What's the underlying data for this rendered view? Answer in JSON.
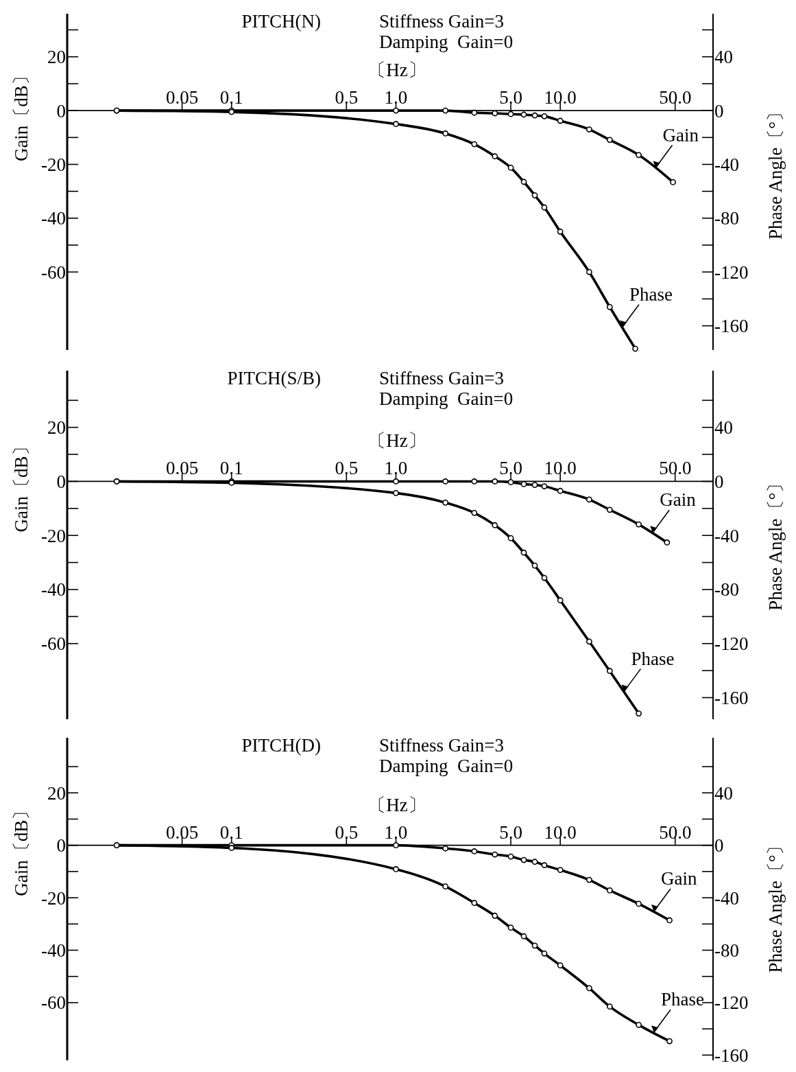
{
  "chart_data": [
    {
      "type": "line",
      "legend": "right",
      "title": "PITCH(N)",
      "subtitle": "Stiffness Gain=3\nDamping  Gain=0",
      "xlabel": "〔Hz〕",
      "ylabel": "Gain〔dB〕",
      "y2label": "Phase Angle〔°〕",
      "log": "x",
      "marker": "circle",
      "xlim": [
        0.01,
        85
      ],
      "ylim": [
        -89,
        36
      ],
      "y2lim": [
        -178,
        72
      ],
      "xticks": [
        0.05,
        0.1,
        0.5,
        {
          "value": 1,
          "label": "1.0"
        },
        {
          "value": 5,
          "label": "5.0"
        },
        {
          "value": 10,
          "label": "10.0"
        },
        {
          "value": 50,
          "label": "50.0"
        }
      ],
      "yticks": [
        {
          "value": 30,
          "label": null
        },
        20,
        {
          "value": 10,
          "label": null
        },
        0,
        {
          "value": -10,
          "label": null
        },
        -20,
        {
          "value": -30,
          "label": null
        },
        -40,
        {
          "value": -50,
          "label": null
        },
        -60
      ],
      "y2ticks": [
        {
          "value": 60,
          "label": null
        },
        40,
        {
          "value": 20,
          "label": null
        },
        0,
        {
          "value": -20,
          "label": null
        },
        -40,
        {
          "value": -60,
          "label": null
        },
        -80,
        {
          "value": -100,
          "label": null
        },
        -120,
        {
          "value": -140,
          "label": null
        },
        -160
      ],
      "series": [
        {
          "name": "Gain",
          "color": "#000000",
          "x": [
            0.02,
            0.1,
            1,
            2,
            3,
            4,
            5,
            6,
            7,
            8,
            10,
            15,
            20,
            30,
            48.5
          ],
          "values": [
            0,
            0,
            0,
            0,
            -0.8,
            -1,
            -1.3,
            -1.5,
            -1.8,
            -2.1,
            -3.8,
            -7,
            -10.9,
            -16.5,
            -26.6
          ]
        },
        {
          "name": "Phase",
          "axis": "y2",
          "color": "#000000",
          "x": [
            0.02,
            0.1,
            1,
            2,
            3,
            4,
            5,
            6,
            7,
            8,
            10,
            15,
            20,
            28.6
          ],
          "values": [
            0,
            -1,
            -10,
            -17,
            -25,
            -34,
            -42.5,
            -53,
            -63,
            -72,
            -90,
            -120,
            -146,
            -177
          ]
        }
      ]
    },
    {
      "type": "line",
      "legend": "right",
      "title": "PITCH(S/B)",
      "subtitle": "Stiffness Gain=3\nDamping  Gain=0",
      "xlabel": "〔Hz〕",
      "ylabel": "Gain〔dB〕",
      "y2label": "Phase Angle〔°〕",
      "log": "x",
      "marker": "circle",
      "xlim": [
        0.01,
        85
      ],
      "ylim": [
        -88,
        41
      ],
      "y2lim": [
        -176,
        82
      ],
      "xticks": [
        0.05,
        0.1,
        0.5,
        {
          "value": 1,
          "label": "1.0"
        },
        {
          "value": 5,
          "label": "5.0"
        },
        {
          "value": 10,
          "label": "10.0"
        },
        {
          "value": 50,
          "label": "50.0"
        }
      ],
      "yticks": [
        {
          "value": 30,
          "label": null
        },
        20,
        {
          "value": 10,
          "label": null
        },
        0,
        {
          "value": -10,
          "label": null
        },
        -20,
        {
          "value": -30,
          "label": null
        },
        -40,
        {
          "value": -50,
          "label": null
        },
        -60
      ],
      "y2ticks": [
        {
          "value": 60,
          "label": null
        },
        40,
        {
          "value": 20,
          "label": null
        },
        0,
        {
          "value": -20,
          "label": null
        },
        -40,
        {
          "value": -60,
          "label": null
        },
        -80,
        {
          "value": -100,
          "label": null
        },
        -120,
        {
          "value": -140,
          "label": null
        },
        -160
      ],
      "series": [
        {
          "name": "Gain",
          "color": "#000000",
          "x": [
            0.02,
            0.1,
            1,
            2,
            3,
            4,
            5,
            6,
            7,
            8,
            10,
            15,
            20,
            30,
            44.6
          ],
          "values": [
            0,
            0,
            0,
            0,
            0,
            0,
            -0.3,
            -1,
            -1.3,
            -1.8,
            -3.5,
            -6.7,
            -10.5,
            -15.9,
            -22.6
          ]
        },
        {
          "name": "Phase",
          "axis": "y2",
          "color": "#000000",
          "x": [
            0.02,
            0.1,
            1,
            2,
            3,
            4,
            5,
            6,
            7,
            8,
            10,
            15,
            20,
            30
          ],
          "values": [
            0,
            -1,
            -8.6,
            -15.7,
            -23.3,
            -32.4,
            -42,
            -52.7,
            -62.3,
            -71.4,
            -88,
            -118.5,
            -140.3,
            -171.7
          ]
        }
      ]
    },
    {
      "type": "line",
      "legend": "right",
      "title": "PITCH(D)",
      "subtitle": "Stiffness Gain=3\nDamping  Gain=0",
      "xlabel": "〔Hz〕",
      "ylabel": "Gain〔dB〕",
      "y2label": "Phase Angle〔°〕",
      "log": "x",
      "marker": "circle",
      "xlim": [
        0.01,
        85
      ],
      "ylim": [
        -82,
        41
      ],
      "y2lim": [
        -164,
        82
      ],
      "xticks": [
        0.05,
        0.1,
        0.5,
        {
          "value": 1,
          "label": "1.0"
        },
        {
          "value": 5,
          "label": "5.0"
        },
        {
          "value": 10,
          "label": "10.0"
        },
        {
          "value": 50,
          "label": "50.0"
        }
      ],
      "yticks": [
        {
          "value": 30,
          "label": null
        },
        20,
        {
          "value": 10,
          "label": null
        },
        0,
        {
          "value": -10,
          "label": null
        },
        -20,
        {
          "value": -30,
          "label": null
        },
        -40,
        {
          "value": -50,
          "label": null
        },
        -60
      ],
      "y2ticks": [
        {
          "value": 60,
          "label": null
        },
        40,
        {
          "value": 20,
          "label": null
        },
        0,
        {
          "value": -20,
          "label": null
        },
        -40,
        {
          "value": -60,
          "label": null
        },
        -80,
        {
          "value": -100,
          "label": null
        },
        -120,
        {
          "value": -140,
          "label": null
        },
        -160
      ],
      "series": [
        {
          "name": "Gain",
          "color": "#000000",
          "x": [
            0.02,
            0.1,
            1,
            2,
            3,
            4,
            5,
            6,
            7,
            8,
            10,
            15,
            20,
            30,
            46.2
          ],
          "values": [
            0,
            0,
            0,
            -1.2,
            -2.3,
            -3.5,
            -4.3,
            -5.6,
            -6.3,
            -7.6,
            -9.4,
            -13.2,
            -17.2,
            -22.3,
            -28.6
          ]
        },
        {
          "name": "Phase",
          "axis": "y2",
          "color": "#000000",
          "x": [
            0.02,
            0.1,
            1,
            2,
            3,
            4,
            5,
            6,
            7,
            8,
            10,
            15,
            20,
            30,
            46.2
          ],
          "values": [
            0,
            -2,
            -18.2,
            -31.4,
            -44,
            -53.7,
            -62.8,
            -69.4,
            -76.5,
            -82.5,
            -91.6,
            -109,
            -123,
            -137,
            -149.4
          ]
        }
      ]
    }
  ]
}
